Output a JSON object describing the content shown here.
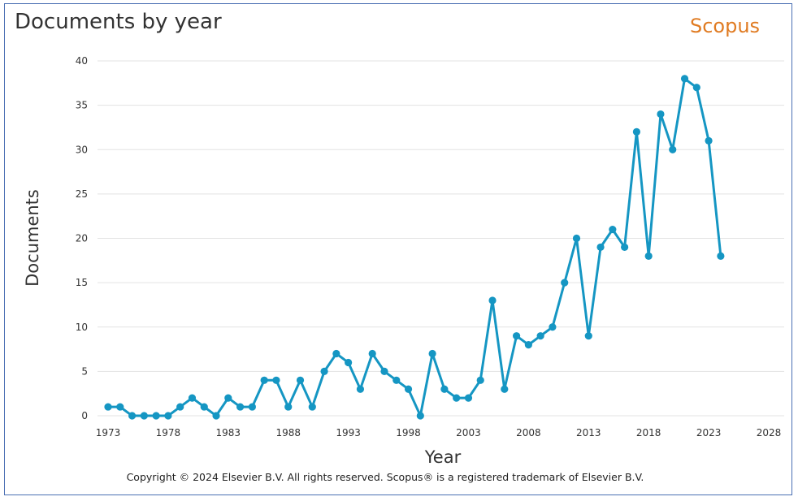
{
  "header": {
    "title": "Documents by year",
    "brand": "Scopus"
  },
  "footer": {
    "copyright": "Copyright © 2024 Elsevier B.V. All rights reserved. Scopus® is a registered trademark of Elsevier B.V."
  },
  "colors": {
    "series": "#1596c3",
    "brand": "#e07b22",
    "grid": "#e3e3e3",
    "border": "#4a6fb3"
  },
  "chart_data": {
    "type": "line",
    "title": "Documents by year",
    "xlabel": "Year",
    "ylabel": "Documents",
    "xlim": [
      1973,
      2028
    ],
    "ylim": [
      0,
      40
    ],
    "x_ticks": [
      "1973",
      "1978",
      "1983",
      "1988",
      "1993",
      "1998",
      "2003",
      "2008",
      "2013",
      "2018",
      "2023",
      "2028"
    ],
    "y_ticks": [
      "0",
      "5",
      "10",
      "15",
      "20",
      "25",
      "30",
      "35",
      "40"
    ],
    "grid": true,
    "legend": "none",
    "series": [
      {
        "x": [
          1973,
          1974,
          1975,
          1976,
          1977,
          1978,
          1979,
          1980,
          1981,
          1982,
          1983,
          1984,
          1985,
          1986,
          1987,
          1988,
          1989,
          1990,
          1991,
          1992,
          1993,
          1994,
          1995,
          1996,
          1997,
          1998,
          1999,
          2000,
          2001,
          2002,
          2003,
          2004,
          2005,
          2006,
          2007,
          2008,
          2009,
          2010,
          2011,
          2012,
          2013,
          2014,
          2015,
          2016,
          2017,
          2018,
          2019,
          2020,
          2021,
          2022,
          2023,
          2024
        ],
        "values": [
          1,
          1,
          0,
          0,
          0,
          0,
          1,
          2,
          1,
          0,
          2,
          1,
          1,
          4,
          4,
          1,
          4,
          1,
          5,
          7,
          6,
          3,
          7,
          5,
          4,
          3,
          0,
          7,
          3,
          2,
          2,
          4,
          13,
          3,
          9,
          8,
          9,
          10,
          15,
          20,
          9,
          19,
          21,
          19,
          32,
          18,
          34,
          30,
          38,
          37,
          31,
          18
        ]
      }
    ]
  }
}
